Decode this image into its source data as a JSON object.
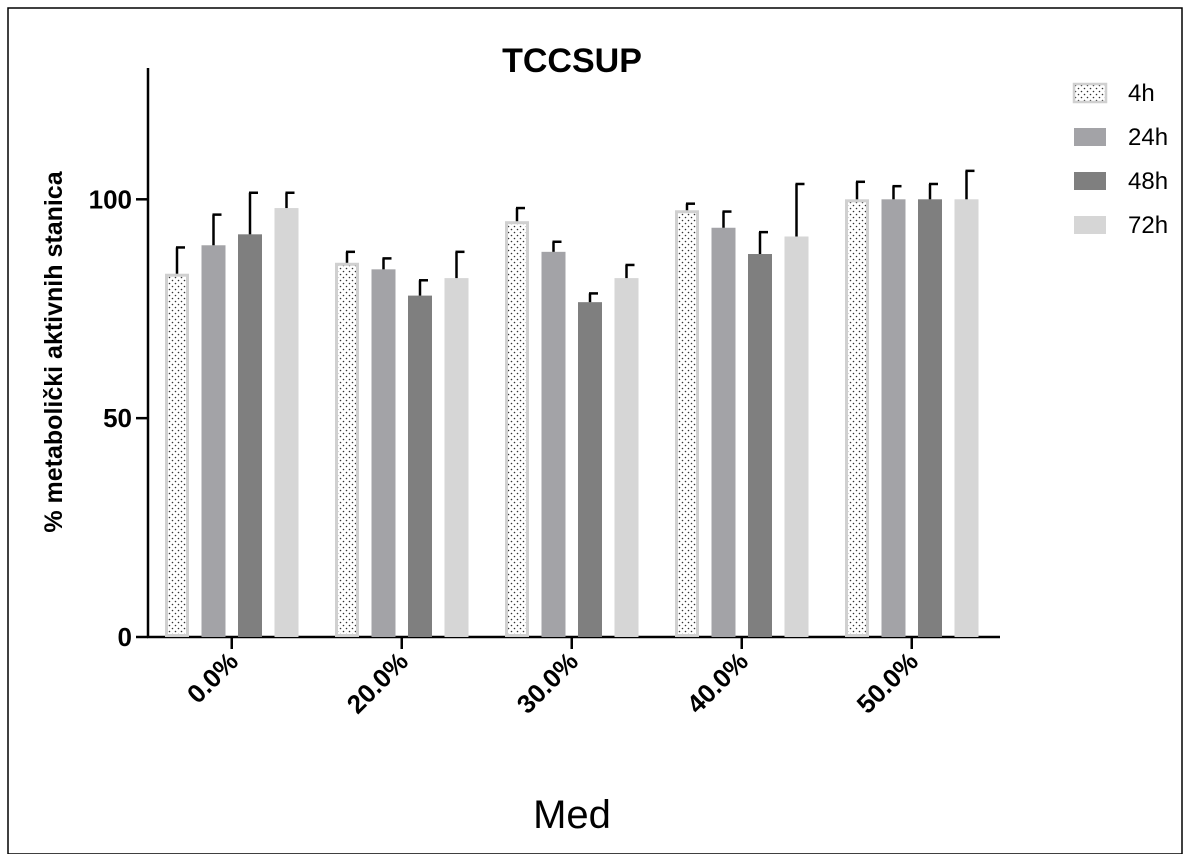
{
  "chart_data": {
    "type": "bar",
    "title": "TCCSUP",
    "xlabel": "Med",
    "ylabel": "% metabolički aktivnih stanica",
    "categories": [
      "0.0%",
      "20.0%",
      "30.0%",
      "40.0%",
      "50.0%"
    ],
    "ylim": [
      0,
      130
    ],
    "yticks": [
      0,
      50,
      100
    ],
    "legend_position": "top-right",
    "grid": false,
    "series": [
      {
        "name": "4h",
        "style": "dotted",
        "color": "#ffffff",
        "edge": "#d0d0d0",
        "values": [
          83,
          85.5,
          95,
          97.5,
          100
        ],
        "errors": [
          6,
          2.5,
          3,
          1.5,
          4
        ]
      },
      {
        "name": "24h",
        "style": "solid",
        "color": "#a3a3a7",
        "edge": "#a3a3a7",
        "values": [
          89.5,
          84,
          88,
          93.5,
          100
        ],
        "errors": [
          7,
          2.5,
          2.3,
          3.7,
          3
        ]
      },
      {
        "name": "48h",
        "style": "solid",
        "color": "#7f7f7f",
        "edge": "#7f7f7f",
        "values": [
          92,
          78,
          76.5,
          87.5,
          100
        ],
        "errors": [
          9.5,
          3.5,
          2,
          5,
          3.5
        ]
      },
      {
        "name": "72h",
        "style": "solid",
        "color": "#d6d6d6",
        "edge": "#d6d6d6",
        "values": [
          98,
          82,
          82,
          91.5,
          100
        ],
        "errors": [
          3.5,
          6,
          3,
          12,
          6.5
        ]
      }
    ]
  }
}
